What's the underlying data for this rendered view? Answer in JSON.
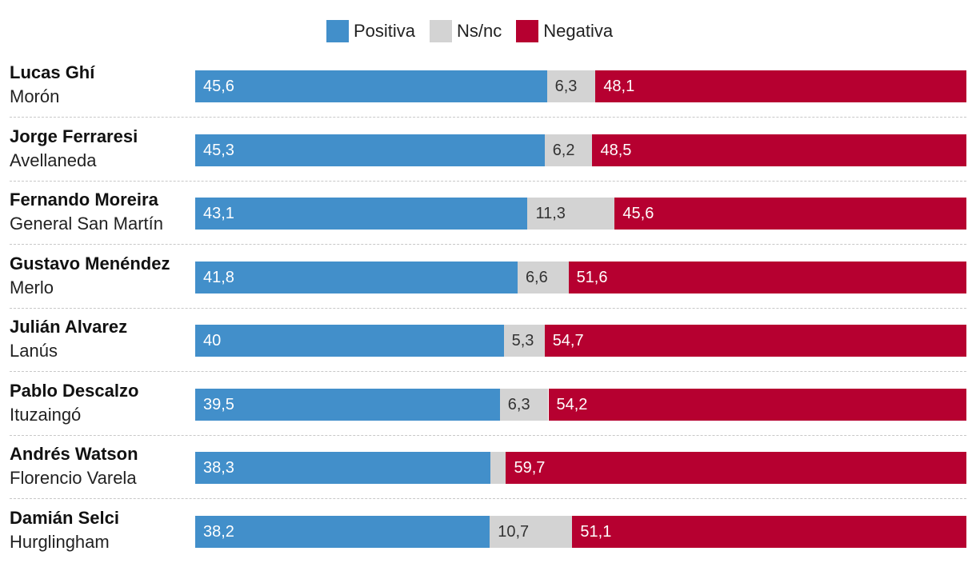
{
  "legend": [
    {
      "label": "Positiva",
      "color": "#428fca"
    },
    {
      "label": "Ns/nc",
      "color": "#d3d3d3"
    },
    {
      "label": "Negativa",
      "color": "#b60030"
    }
  ],
  "chart_data": {
    "type": "bar",
    "orientation": "horizontal",
    "stacked": true,
    "title": "",
    "xlabel": "",
    "ylabel": "",
    "xlim": [
      0,
      100
    ],
    "legend_position": "top-center",
    "categories": [
      {
        "name": "Lucas Ghí",
        "place": "Morón"
      },
      {
        "name": "Jorge Ferraresi",
        "place": "Avellaneda"
      },
      {
        "name": "Fernando Moreira",
        "place": "General San Martín"
      },
      {
        "name": "Gustavo Menéndez",
        "place": "Merlo"
      },
      {
        "name": "Julián Alvarez",
        "place": "Lanús"
      },
      {
        "name": "Pablo Descalzo",
        "place": "Ituzaingó"
      },
      {
        "name": "Andrés Watson",
        "place": "Florencio Varela"
      },
      {
        "name": "Damián Selci",
        "place": "Hurglingham"
      }
    ],
    "series": [
      {
        "name": "Positiva",
        "color": "#428fca",
        "values": [
          45.6,
          45.3,
          43.1,
          41.8,
          40,
          39.5,
          38.3,
          38.2
        ],
        "labels": [
          "45,6",
          "45,3",
          "43,1",
          "41,8",
          "40",
          "39,5",
          "38,3",
          "38,2"
        ]
      },
      {
        "name": "Ns/nc",
        "color": "#d3d3d3",
        "values": [
          6.3,
          6.2,
          11.3,
          6.6,
          5.3,
          6.3,
          2.0,
          10.7
        ],
        "labels": [
          "6,3",
          "6,2",
          "11,3",
          "6,6",
          "5,3",
          "6,3",
          "",
          "10,7"
        ]
      },
      {
        "name": "Negativa",
        "color": "#b60030",
        "values": [
          48.1,
          48.5,
          45.6,
          51.6,
          54.7,
          54.2,
          59.7,
          51.1
        ],
        "labels": [
          "48,1",
          "48,5",
          "45,6",
          "51,6",
          "54,7",
          "54,2",
          "59,7",
          "51,1"
        ]
      }
    ]
  }
}
